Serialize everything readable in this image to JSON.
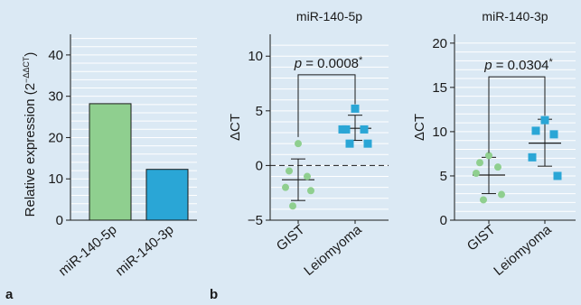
{
  "panel_letters": [
    "a",
    "b"
  ],
  "colors": {
    "background": "#dbe9f4",
    "gist": "#8fcf8f",
    "leiomyoma": "#2aa6d6",
    "bar_5p": "#8fcf8f",
    "bar_3p": "#2aa6d6",
    "gridline": "#ffffff",
    "axis": "#1a1a1a"
  },
  "chart_data": [
    {
      "type": "bar",
      "panel": "a",
      "title": "",
      "ylabel": "Relative expression (2",
      "ylabel_superscript": "−ΔΔCT",
      "ylabel_close": ")",
      "categories": [
        "miR-140-5p",
        "miR-140-3p"
      ],
      "values": [
        28.2,
        12.3
      ],
      "ylim": [
        0,
        45
      ],
      "yticks": [
        0,
        10,
        20,
        30,
        40
      ],
      "grid": true
    },
    {
      "type": "scatter",
      "panel": "b",
      "title": "miR-140-5p",
      "ylabel": "ΔCT",
      "categories": [
        "GIST",
        "Leiomyoma"
      ],
      "ylim": [
        -5,
        12
      ],
      "yticks": [
        -5,
        0,
        5,
        10
      ],
      "grid": true,
      "reference_line_y": 0,
      "series": [
        {
          "group": "GIST",
          "marker": "circle",
          "values": [
            2.0,
            -0.5,
            -1.0,
            -2.0,
            -2.3,
            -3.7
          ],
          "mean": -1.3,
          "sd_low": -3.2,
          "sd_high": 0.6
        },
        {
          "group": "Leiomyoma",
          "marker": "square",
          "values": [
            5.2,
            3.3,
            3.3,
            3.3,
            2.0,
            2.0
          ],
          "mean": 3.4,
          "sd_low": 2.3,
          "sd_high": 4.6
        }
      ],
      "annotation": {
        "p_label": "p",
        "p_value": " = 0.0008",
        "star": "*"
      }
    },
    {
      "type": "scatter",
      "panel": "b",
      "title": "miR-140-3p",
      "ylabel": "ΔCT",
      "categories": [
        "GIST",
        "Leiomyoma"
      ],
      "ylim": [
        0,
        21
      ],
      "yticks": [
        0,
        5,
        10,
        15,
        20
      ],
      "grid": true,
      "series": [
        {
          "group": "GIST",
          "marker": "circle",
          "values": [
            7.3,
            6.5,
            6.0,
            5.3,
            2.9,
            2.3
          ],
          "mean": 5.1,
          "sd_low": 3.0,
          "sd_high": 7.1
        },
        {
          "group": "Leiomyoma",
          "marker": "square",
          "values": [
            11.3,
            10.1,
            9.7,
            7.1,
            5.0
          ],
          "mean": 8.7,
          "sd_low": 6.1,
          "sd_high": 11.4
        }
      ],
      "annotation": {
        "p_label": "p",
        "p_value": " = 0.0304",
        "star": "*"
      }
    }
  ]
}
